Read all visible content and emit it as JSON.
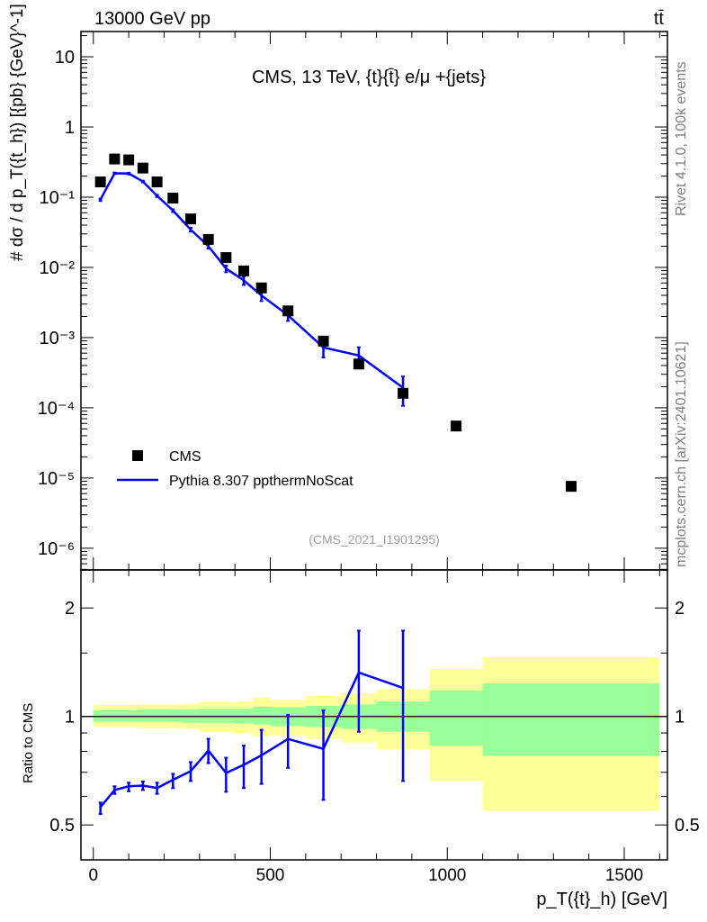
{
  "header": {
    "left": "13000 GeV pp",
    "right": "tt̄"
  },
  "side_text": {
    "rivet": "Rivet 4.1.0,  100k events",
    "mcplots": "mcplots.cern.ch [arXiv:2401.10621]"
  },
  "chart_data": {
    "type": "scatter",
    "title": "CMS, 13 TeV, {t}{t̄} e/μ +{jets}",
    "watermark": "(CMS_2021_I1901295)",
    "xlabel": "p_T({t}_h) [GeV]",
    "ylabel": "# dσ / d p_T({t_h}) [{pb} {GeV}^-1]",
    "ratio_ylabel": "Ratio to CMS",
    "xlim": [
      -35,
      1622
    ],
    "ylim": [
      4.9e-07,
      22.9
    ],
    "yscale": "log",
    "ratio_ylim": [
      0.4,
      2.55
    ],
    "ratio_yscale": "log",
    "x_ticks": [
      0,
      500,
      1000,
      1500
    ],
    "x_tick_labels": [
      "0",
      "500",
      "1000",
      "1500"
    ],
    "y_tick_labels": [
      "10",
      "1",
      "10⁻¹",
      "10⁻²",
      "10⁻³",
      "10⁻⁴",
      "10⁻⁵",
      "10⁻⁶"
    ],
    "ratio_ticks": [
      0.5,
      1,
      2
    ],
    "ratio_tick_labels": [
      "0.5",
      "1",
      "2"
    ],
    "legend": {
      "position": "bottom-left",
      "entries": [
        "CMS",
        "Pythia 8.307 ppthermNoScat"
      ]
    },
    "colors": {
      "data": "#000000",
      "mc": "#0000ff",
      "band_outer": "#ffff99",
      "band_inner": "#99ff99"
    },
    "bin_edges": [
      0,
      40,
      80,
      120,
      160,
      200,
      250,
      300,
      350,
      400,
      450,
      500,
      600,
      700,
      800,
      950,
      1100,
      1600
    ],
    "x": [
      20,
      60,
      100,
      140,
      180,
      225,
      275,
      325,
      375,
      425,
      475,
      550,
      650,
      750,
      875,
      1025,
      1350
    ],
    "series": [
      {
        "name": "CMS",
        "values": [
          0.165,
          0.35,
          0.34,
          0.26,
          0.165,
          0.097,
          0.049,
          0.025,
          0.0138,
          0.0089,
          0.0051,
          0.0024,
          0.00089,
          0.00042,
          0.000161,
          5.5e-05,
          7.6e-06
        ]
      },
      {
        "name": "Pythia 8.307 ppthermNoScat",
        "ratio": [
          0.56,
          0.625,
          0.64,
          0.643,
          0.633,
          0.667,
          0.705,
          0.804,
          0.697,
          0.734,
          0.78,
          0.866,
          0.813,
          1.324,
          1.2
        ],
        "ratio_err_lo": [
          0.536,
          0.61,
          0.62,
          0.625,
          0.61,
          0.633,
          0.662,
          0.742,
          0.618,
          0.633,
          0.65,
          0.72,
          0.587,
          0.907,
          0.662
        ],
        "ratio_err_hi": [
          0.577,
          0.64,
          0.655,
          0.66,
          0.655,
          0.693,
          0.747,
          0.867,
          0.768,
          0.83,
          0.918,
          1.01,
          1.04,
          1.73,
          1.73
        ]
      }
    ],
    "band_edges": [
      0,
      120,
      250,
      300,
      400,
      450,
      500,
      600,
      700,
      800,
      950,
      1100,
      1600
    ],
    "band_outer": [
      [
        0.934,
        1.077
      ],
      [
        0.928,
        1.08
      ],
      [
        0.923,
        1.085
      ],
      [
        0.91,
        1.095
      ],
      [
        0.9,
        1.1
      ],
      [
        0.88,
        1.13
      ],
      [
        0.887,
        1.11
      ],
      [
        0.866,
        1.14
      ],
      [
        0.847,
        1.16
      ],
      [
        0.81,
        1.19
      ],
      [
        0.662,
        1.355
      ],
      [
        0.547,
        1.46
      ]
    ],
    "band_inner": [
      [
        0.966,
        1.04
      ],
      [
        0.966,
        1.045
      ],
      [
        0.96,
        1.047
      ],
      [
        0.96,
        1.05
      ],
      [
        0.955,
        1.05
      ],
      [
        0.95,
        1.065
      ],
      [
        0.94,
        1.06
      ],
      [
        0.934,
        1.07
      ],
      [
        0.923,
        1.08
      ],
      [
        0.907,
        1.1
      ],
      [
        0.83,
        1.18
      ],
      [
        0.777,
        1.236
      ]
    ]
  }
}
